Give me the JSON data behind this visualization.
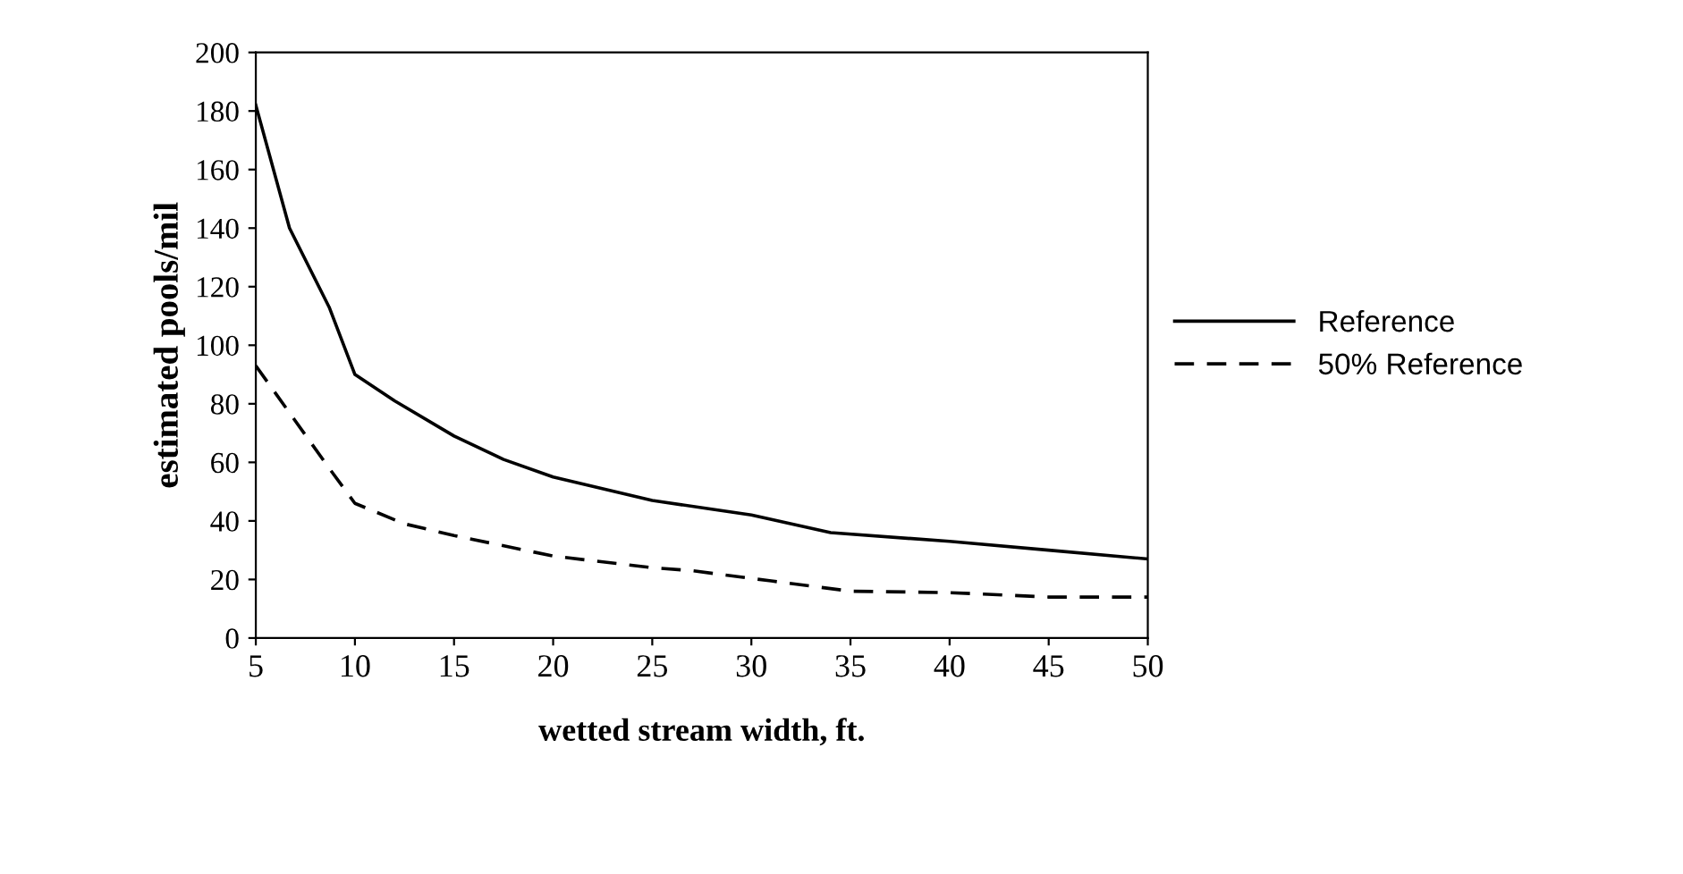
{
  "chart_data": {
    "type": "line",
    "xlabel": "wetted stream width, ft.",
    "ylabel": "estimated pools/mil",
    "xlim": [
      5,
      50
    ],
    "xticks": [
      5,
      10,
      15,
      20,
      25,
      30,
      35,
      40,
      45,
      50
    ],
    "ylim": [
      0,
      200
    ],
    "yticks": [
      0,
      20,
      40,
      60,
      80,
      100,
      120,
      140,
      160,
      180,
      200
    ],
    "legend": "right",
    "grid": false,
    "series": [
      {
        "name": "Reference",
        "color": "#000000",
        "line_style": "solid",
        "x": [
          5,
          6.7,
          8.7,
          10,
          12,
          15,
          17.5,
          20,
          25,
          28,
          30,
          34,
          40,
          45,
          50
        ],
        "values": [
          182,
          140,
          113,
          90,
          81,
          69,
          61,
          55,
          47,
          44,
          42,
          36,
          33,
          30,
          27
        ]
      },
      {
        "name": "50% Reference",
        "color": "#000000",
        "line_style": "dashed",
        "x": [
          5,
          8.7,
          10,
          12.5,
          15,
          20,
          25,
          27,
          31,
          35,
          40,
          45,
          50
        ],
        "values": [
          93,
          58,
          46,
          39,
          35,
          28,
          24,
          23,
          19.5,
          16,
          15.5,
          14,
          14
        ]
      }
    ]
  }
}
